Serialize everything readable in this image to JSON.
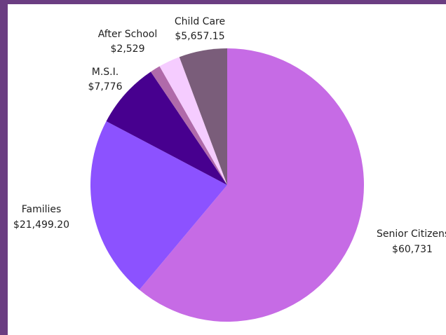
{
  "chart_data": {
    "type": "pie",
    "slices": [
      {
        "label": "Senior Citizens",
        "value_text": "$60,731",
        "value": 60731,
        "color": "#c66be5"
      },
      {
        "label": "Families",
        "value_text": "$21,499.20",
        "value": 21499.2,
        "color": "#8c52ff"
      },
      {
        "label": "M.S.I.",
        "value_text": "$7,776",
        "value": 7776,
        "color": "#47008f"
      },
      {
        "label": "",
        "value_text": "",
        "value": 1200,
        "color": "#b06aaa"
      },
      {
        "label": "After School",
        "value_text": "$2,529",
        "value": 2529,
        "color": "#f5ccff"
      },
      {
        "label": "Child Care",
        "value_text": "$5,657.15",
        "value": 5657.15,
        "color": "#7a5d7a"
      }
    ]
  }
}
